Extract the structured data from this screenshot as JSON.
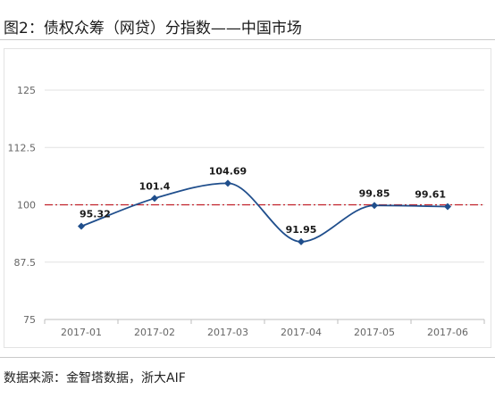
{
  "figure": {
    "title": "图2：债权众筹（网贷）分指数——中国市场",
    "source": "数据来源：金智塔数据，浙大AIF"
  },
  "colors": {
    "series": "#1f4e8c",
    "reference": "#c0202a",
    "grid": "#e2e2e2",
    "axis_text": "#666666"
  },
  "chart_data": {
    "type": "line",
    "title": "",
    "xlabel": "",
    "ylabel": "",
    "categories": [
      "2017-01",
      "2017-02",
      "2017-03",
      "2017-04",
      "2017-05",
      "2017-06"
    ],
    "series": [
      {
        "values": [
          95.32,
          101.4,
          104.69,
          91.95,
          99.85,
          99.61
        ]
      }
    ],
    "data_labels": [
      "95.32",
      "101.4",
      "104.69",
      "91.95",
      "99.85",
      "99.61"
    ],
    "ylim": [
      75,
      125
    ],
    "yticks": [
      75,
      87.5,
      100,
      112.5,
      125
    ],
    "ytick_labels": [
      "75",
      "87.5",
      "100",
      "112.5",
      "125"
    ],
    "reference_line": {
      "value": 100,
      "style": "dash-dot"
    },
    "smooth": true,
    "markers": "diamond",
    "grid": true,
    "legend": "none"
  }
}
